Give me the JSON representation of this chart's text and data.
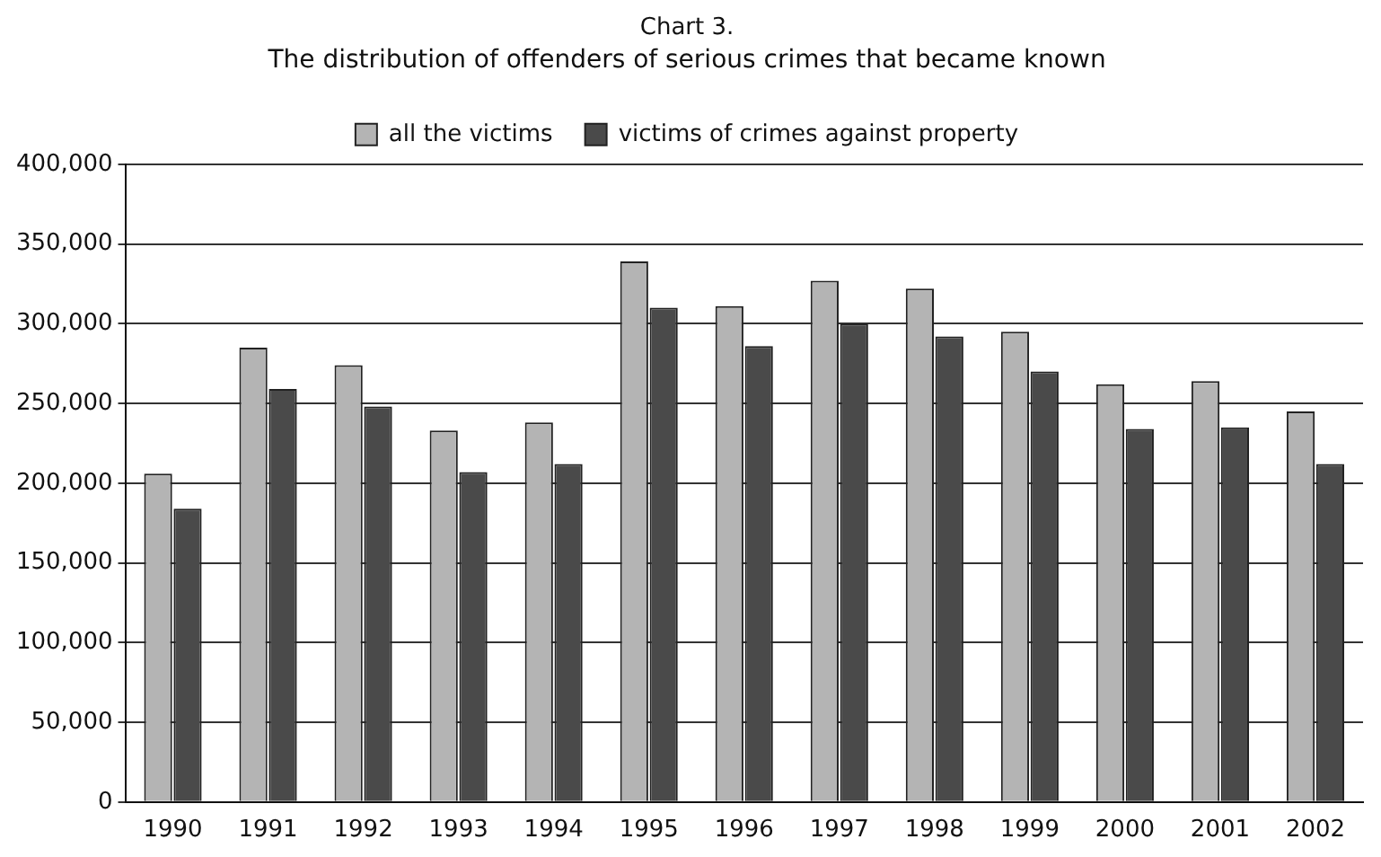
{
  "chart_data": {
    "type": "bar",
    "title": "Chart 3.",
    "subtitle": "The distribution of offenders of serious crimes that became known",
    "categories": [
      "1990",
      "1991",
      "1992",
      "1993",
      "1994",
      "1995",
      "1996",
      "1997",
      "1998",
      "1999",
      "2000",
      "2001",
      "2002"
    ],
    "series": [
      {
        "name": "all the victims",
        "color": "#b4b4b4",
        "values": [
          206000,
          285000,
          274000,
          233000,
          238000,
          339000,
          311000,
          327000,
          322000,
          295000,
          262000,
          264000,
          245000
        ]
      },
      {
        "name": "victims of crimes against property",
        "color": "#4a4a4a",
        "values": [
          184000,
          259000,
          248000,
          207000,
          212000,
          310000,
          286000,
          300000,
          292000,
          270000,
          234000,
          235000,
          212000
        ]
      }
    ],
    "ylim": [
      0,
      400000
    ],
    "yticks": [
      {
        "value": 0,
        "label": "0"
      },
      {
        "value": 50000,
        "label": "50,000"
      },
      {
        "value": 100000,
        "label": "100,000"
      },
      {
        "value": 150000,
        "label": "150,000"
      },
      {
        "value": 200000,
        "label": "200,000"
      },
      {
        "value": 250000,
        "label": "250,000"
      },
      {
        "value": 300000,
        "label": "300,000"
      },
      {
        "value": 350000,
        "label": "350,000"
      },
      {
        "value": 400000,
        "label": "400,000"
      }
    ],
    "grid": "y",
    "legend": "top"
  }
}
